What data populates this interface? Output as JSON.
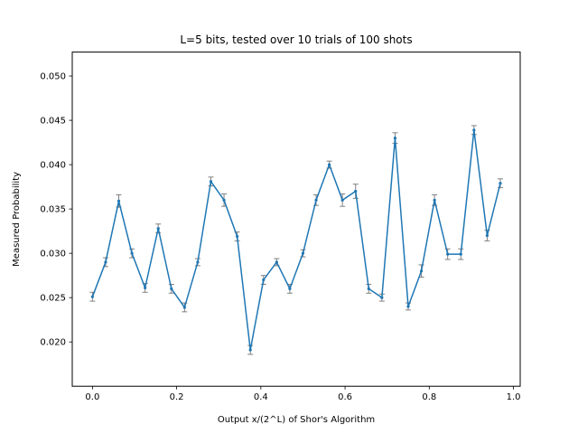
{
  "chart_data": {
    "type": "line",
    "title": "L=5 bits, tested over 10 trials of 100 shots",
    "xlabel": "Output x/(2^L) of Shor's Algorithm",
    "ylabel": "Measured Probability",
    "xlim": [
      -0.048,
      1.016
    ],
    "ylim": [
      0.015,
      0.0527
    ],
    "xticks": [
      0.0,
      0.2,
      0.4,
      0.6,
      0.8,
      1.0
    ],
    "xtick_labels": [
      "0.0",
      "0.2",
      "0.4",
      "0.6",
      "0.8",
      "1.0"
    ],
    "yticks": [
      0.02,
      0.025,
      0.03,
      0.035,
      0.04,
      0.045,
      0.05
    ],
    "ytick_labels": [
      "0.020",
      "0.025",
      "0.030",
      "0.035",
      "0.040",
      "0.045",
      "0.050"
    ],
    "grid": false,
    "legend": "none",
    "series": [
      {
        "color": "#1f77b4",
        "errorbar_color": "#808080",
        "x": [
          0.0,
          0.03125,
          0.0625,
          0.09375,
          0.125,
          0.15625,
          0.1875,
          0.21875,
          0.25,
          0.28125,
          0.3125,
          0.34375,
          0.375,
          0.40625,
          0.4375,
          0.46875,
          0.5,
          0.53125,
          0.5625,
          0.59375,
          0.625,
          0.65625,
          0.6875,
          0.71875,
          0.75,
          0.78125,
          0.8125,
          0.84375,
          0.875,
          0.90625,
          0.9375,
          0.96875
        ],
        "y": [
          0.0251,
          0.029,
          0.0359,
          0.03,
          0.0261,
          0.0328,
          0.026,
          0.0239,
          0.029,
          0.0381,
          0.036,
          0.0319,
          0.0191,
          0.027,
          0.029,
          0.026,
          0.03,
          0.036,
          0.04,
          0.036,
          0.037,
          0.026,
          0.025,
          0.043,
          0.024,
          0.028,
          0.036,
          0.0299,
          0.0299,
          0.0439,
          0.032,
          0.0379
        ],
        "err": [
          0.0005,
          0.0005,
          0.0007,
          0.0005,
          0.0005,
          0.0005,
          0.0005,
          0.0005,
          0.0004,
          0.0005,
          0.0007,
          0.0005,
          0.0005,
          0.0005,
          0.0004,
          0.0005,
          0.0004,
          0.0006,
          0.0004,
          0.0007,
          0.0008,
          0.0005,
          0.0004,
          0.0006,
          0.0004,
          0.0007,
          0.0006,
          0.0006,
          0.0006,
          0.0005,
          0.0006,
          0.0005
        ]
      }
    ]
  }
}
